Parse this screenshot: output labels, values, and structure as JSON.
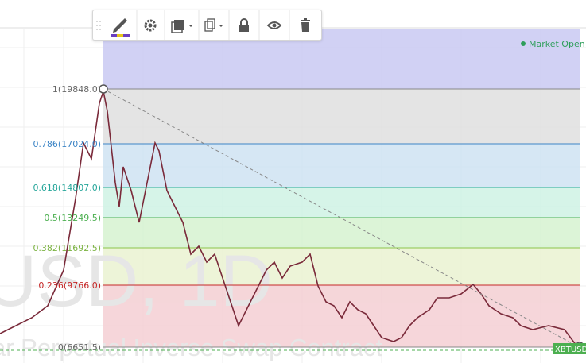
{
  "status": "Market Open",
  "watermark": {
    "symbol": "USD, 1D",
    "description": "ar Perpetual Inverse Swap Contract"
  },
  "fib_levels": [
    {
      "label": "1(19848.0)"
    },
    {
      "label": "0.786(17024.0)"
    },
    {
      "label": "0.618(14807.0)"
    },
    {
      "label": "0.5(13249.5)"
    },
    {
      "label": "0.382(11692.5)"
    },
    {
      "label": "0.236(9766.0)"
    },
    {
      "label": "0(6651.5)"
    }
  ],
  "price_tag": "XBTUSD"
}
